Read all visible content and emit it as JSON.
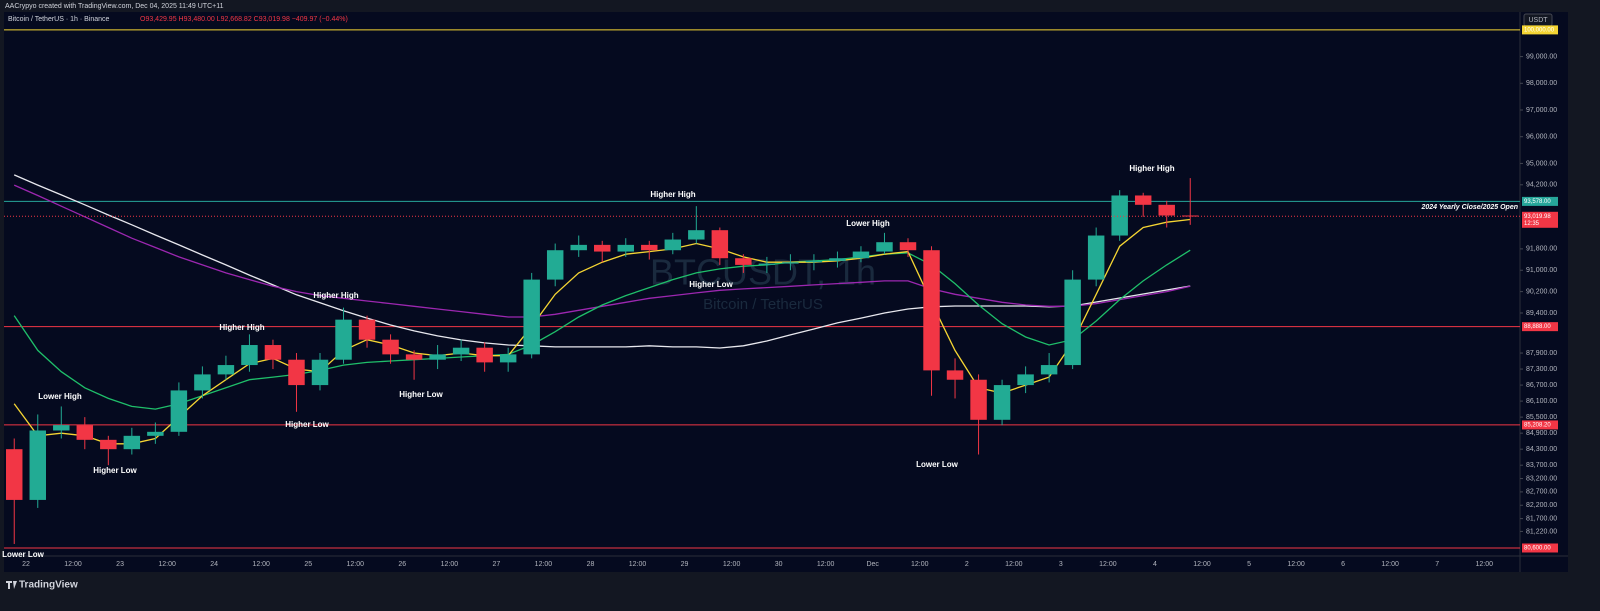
{
  "chart_data": {
    "type": "candlestick",
    "credit": "AACrypyo created with TradingView.com, Dec 04, 2025 11:49 UTC+11",
    "symbol": "Bitcoin / TetherUS · 1h · Binance",
    "ohlc_text": "O93,429.95 H93,480.00 L92,668.82 C93,019.98 −409.97 (−0.44%)",
    "currency": "USDT",
    "watermark": "BTCUSDT, 1h",
    "watermark_sub": "Bitcoin / TetherUS",
    "logo": "TradingView",
    "ylim": [
      80300,
      100670
    ],
    "yticks": [
      {
        "value": 99000,
        "label": "99,000.00"
      },
      {
        "value": 98000,
        "label": "98,000.00"
      },
      {
        "value": 97000,
        "label": "97,000.00"
      },
      {
        "value": 96000,
        "label": "96,000.00"
      },
      {
        "value": 95000,
        "label": "95,000.00"
      },
      {
        "value": 94200,
        "label": "94,200.00"
      },
      {
        "value": 91800,
        "label": "91,800.00"
      },
      {
        "value": 91000,
        "label": "91,000.00"
      },
      {
        "value": 90200,
        "label": "90,200.00"
      },
      {
        "value": 89400,
        "label": "89,400.00"
      },
      {
        "value": 87900,
        "label": "87,900.00"
      },
      {
        "value": 87300,
        "label": "87,300.00"
      },
      {
        "value": 86700,
        "label": "86,700.00"
      },
      {
        "value": 86100,
        "label": "86,100.00"
      },
      {
        "value": 85500,
        "label": "85,500.00"
      },
      {
        "value": 84900,
        "label": "84,900.00"
      },
      {
        "value": 84300,
        "label": "84,300.00"
      },
      {
        "value": 83700,
        "label": "83,700.00"
      },
      {
        "value": 83200,
        "label": "83,200.00"
      },
      {
        "value": 82700,
        "label": "82,700.00"
      },
      {
        "value": 82200,
        "label": "82,200.00"
      },
      {
        "value": 81700,
        "label": "81,700.00"
      },
      {
        "value": 81220,
        "label": "81,220.00"
      }
    ],
    "xticks": [
      "22",
      "12:00",
      "23",
      "12:00",
      "24",
      "12:00",
      "25",
      "12:00",
      "26",
      "12:00",
      "27",
      "12:00",
      "28",
      "12:00",
      "29",
      "12:00",
      "30",
      "12:00",
      "Dec",
      "12:00",
      "2",
      "12:00",
      "3",
      "12:00",
      "4",
      "12:00",
      "5",
      "12:00",
      "6",
      "12:00",
      "7",
      "12:00"
    ],
    "grid": false,
    "up_color": "#22ab94",
    "down_color": "#f23645",
    "candles": {
      "open": [
        84300,
        82400,
        85000,
        85200,
        84650,
        84300,
        84800,
        84950,
        86500,
        87100,
        87450,
        88200,
        87650,
        86700,
        87650,
        89150,
        88400,
        87850,
        87650,
        87850,
        88100,
        87550,
        87850,
        90650,
        91750,
        91950,
        91700,
        91950,
        91750,
        92150,
        92500,
        91450,
        91200,
        91250,
        91300,
        91350,
        91450,
        91700,
        92050,
        91750,
        87250,
        86900,
        85400,
        86700,
        87100,
        87450,
        90650,
        92300,
        93800,
        93450,
        93050
      ],
      "high": [
        84700,
        85600,
        85900,
        85500,
        84800,
        85100,
        85300,
        86800,
        87400,
        87800,
        88600,
        88400,
        87900,
        87900,
        89600,
        89300,
        88600,
        88000,
        88200,
        88400,
        88300,
        88100,
        90900,
        92000,
        92300,
        92100,
        92200,
        92100,
        92400,
        93400,
        92600,
        91600,
        91500,
        91600,
        91600,
        91700,
        91900,
        92400,
        92200,
        91900,
        87700,
        87100,
        86900,
        87400,
        87900,
        91000,
        92600,
        94000,
        93900,
        93600,
        94450
      ],
      "low": [
        80750,
        82100,
        84700,
        84300,
        83700,
        84100,
        84500,
        84800,
        86200,
        86900,
        87200,
        87300,
        85700,
        86500,
        87500,
        88100,
        87500,
        86900,
        87300,
        87600,
        87200,
        87200,
        87700,
        90400,
        91500,
        91300,
        91500,
        91400,
        91600,
        92000,
        91200,
        90900,
        90900,
        91000,
        91000,
        91100,
        91300,
        91600,
        91500,
        86300,
        86200,
        84100,
        85200,
        86400,
        86800,
        87300,
        90400,
        92100,
        93000,
        92600,
        92700
      ],
      "close": [
        82400,
        85000,
        85200,
        84650,
        84300,
        84800,
        84950,
        86500,
        87100,
        87450,
        88200,
        87650,
        86700,
        87650,
        89150,
        88400,
        87850,
        87650,
        87850,
        88100,
        87550,
        87850,
        90650,
        91750,
        91950,
        91700,
        91950,
        91750,
        92150,
        92500,
        91450,
        91200,
        91250,
        91300,
        91350,
        91450,
        91700,
        92050,
        91750,
        87250,
        86900,
        85400,
        86700,
        87100,
        87450,
        90650,
        92300,
        93800,
        93450,
        93050,
        93019.98
      ]
    },
    "series": [
      {
        "color": "#e8e8ee",
        "values": [
          94570,
          94190,
          93820,
          93450,
          93070,
          92700,
          92320,
          91950,
          91570,
          91200,
          90820,
          90450,
          90080,
          89780,
          89480,
          89210,
          88950,
          88730,
          88540,
          88390,
          88280,
          88200,
          88170,
          88130,
          88130,
          88130,
          88130,
          88170,
          88130,
          88130,
          88090,
          88170,
          88350,
          88580,
          88800,
          89030,
          89210,
          89400,
          89550,
          89630,
          89660,
          89660,
          89660,
          89660,
          89630,
          89660,
          89810,
          89960,
          90110,
          90260,
          90410
        ]
      },
      {
        "color": "#9c27b0",
        "values": [
          94190,
          93800,
          93400,
          93000,
          92600,
          92200,
          91850,
          91500,
          91200,
          90900,
          90650,
          90400,
          90200,
          90050,
          89950,
          89850,
          89750,
          89650,
          89550,
          89450,
          89350,
          89250,
          89250,
          89350,
          89500,
          89650,
          89800,
          89950,
          90050,
          90150,
          90250,
          90300,
          90350,
          90400,
          90450,
          90500,
          90550,
          90600,
          90600,
          90300,
          90100,
          89950,
          89800,
          89700,
          89650,
          89650,
          89750,
          89900,
          90050,
          90200,
          90400
        ]
      },
      {
        "color": "#1fbf6a",
        "values": [
          89300,
          88000,
          87200,
          86600,
          86200,
          85900,
          85800,
          86000,
          86300,
          86600,
          86900,
          87000,
          87100,
          87250,
          87450,
          87550,
          87600,
          87650,
          87700,
          87750,
          87800,
          87850,
          88200,
          88700,
          89250,
          89700,
          90050,
          90350,
          90650,
          90900,
          91050,
          91150,
          91200,
          91300,
          91350,
          91400,
          91500,
          91600,
          91650,
          91200,
          90500,
          89700,
          89000,
          88500,
          88200,
          88400,
          89100,
          89900,
          90600,
          91200,
          91750
        ]
      },
      {
        "color": "#f5d533",
        "values": [
          86000,
          84800,
          84900,
          84800,
          84500,
          84500,
          84700,
          85500,
          86300,
          86900,
          87500,
          87700,
          87300,
          87200,
          88000,
          88400,
          88200,
          87900,
          87800,
          87900,
          87800,
          87800,
          88900,
          90100,
          90900,
          91300,
          91600,
          91700,
          91800,
          92000,
          91800,
          91500,
          91300,
          91300,
          91300,
          91350,
          91450,
          91600,
          91700,
          89800,
          88000,
          86600,
          86400,
          86700,
          87000,
          88300,
          90100,
          91900,
          92600,
          92800,
          92900
        ]
      }
    ],
    "levels": [
      {
        "value": 100000,
        "label": "100,000.00",
        "color": "#f5d533"
      },
      {
        "value": 93578,
        "label": "93,578.00",
        "color": "#26a69a",
        "note": "2024 Yearly Close/2025 Open"
      },
      {
        "value": 88888,
        "label": "88,888.00",
        "color": "#f23645"
      },
      {
        "value": 85208.2,
        "label": "85,208.20",
        "color": "#f23645"
      },
      {
        "value": 80600,
        "label": "80,600.00",
        "color": "#f23645"
      }
    ],
    "last_price": {
      "value": 93019.98,
      "label": "93,019.98",
      "countdown": "12:35"
    },
    "annotations": [
      "Lower High",
      "Higher Low",
      "Higher High",
      "Higher Low",
      "Higher High",
      "Higher Low",
      "Higher High",
      "Higher Low",
      "Lower High",
      "Lower Low",
      "Higher High",
      "Lower Low"
    ]
  }
}
